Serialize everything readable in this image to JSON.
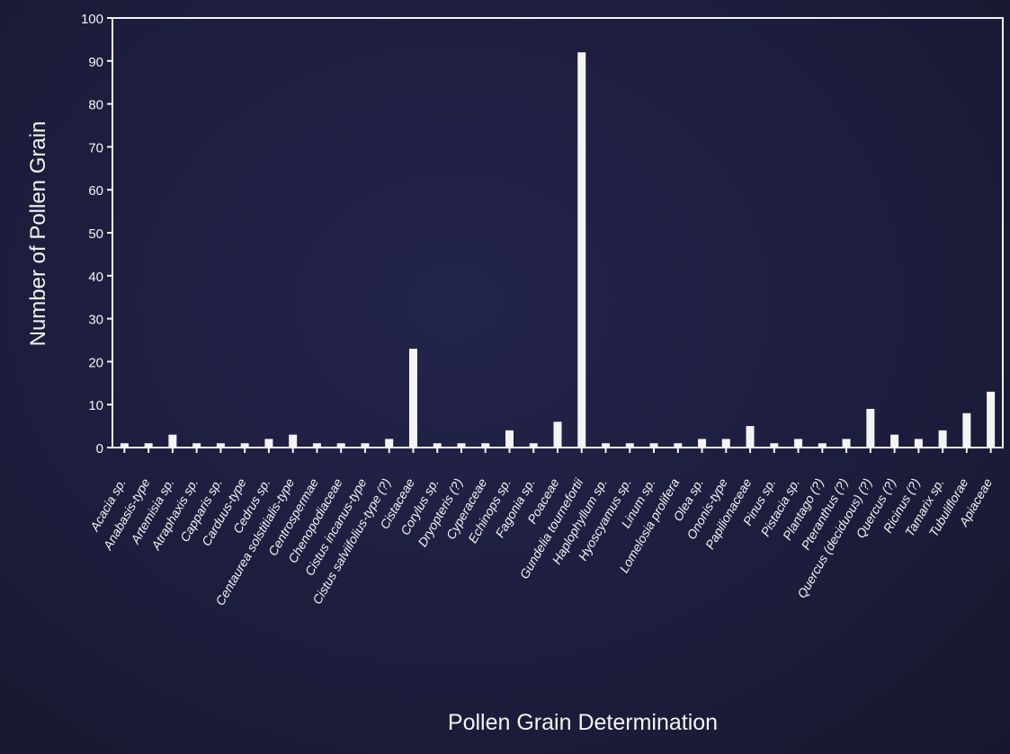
{
  "chart_data": {
    "type": "bar",
    "title": "",
    "xlabel": "Pollen Grain Determination",
    "ylabel": "Number of Pollen Grain",
    "ylim": [
      0,
      100
    ],
    "yticks": [
      0,
      10,
      20,
      30,
      40,
      50,
      60,
      70,
      80,
      90,
      100
    ],
    "grid": false,
    "legend": "none",
    "colors": {
      "background": "#1c1d3a",
      "bar": "#f4f4f4",
      "axis": "#f4f4f4",
      "text": "#f4f4f4"
    },
    "categories": [
      "Acacia sp.",
      "Anabasis-type",
      "Artemisia sp.",
      "Atraphaxis sp.",
      "Capparis sp.",
      "Carduus-type",
      "Cedrus sp.",
      "Centaurea solstitialis-type",
      "Centrospermae",
      "Chenopodiaceae",
      "Cistus incanus-type",
      "Cistus salviifolius-type (?)",
      "Cistaceae",
      "Corylus sp.",
      "Dryopteris (?)",
      "Cyperaceae",
      "Echinops sp.",
      "Fagonia sp.",
      "Poaceae",
      "Gundelia tournefortii",
      "Haplophyllum sp.",
      "Hyoscyamus sp.",
      "Linum sp.",
      "Lomelosia prolifera",
      "Olea sp.",
      "Ononis-type",
      "Papilionaceae",
      "Pinus sp.",
      "Pistacia sp.",
      "Plantago (?)",
      "Pteranthus (?)",
      "Quercus (deciduous) (?)",
      "Quercus (?)",
      "Ricinus (?)",
      "Tamarix sp.",
      "Tubuliflorae",
      "Apiaceae"
    ],
    "values": [
      1,
      1,
      3,
      1,
      1,
      1,
      2,
      3,
      1,
      1,
      1,
      2,
      23,
      1,
      1,
      1,
      4,
      1,
      6,
      92,
      1,
      1,
      1,
      1,
      2,
      2,
      5,
      1,
      2,
      1,
      2,
      9,
      3,
      2,
      4,
      8,
      13
    ]
  }
}
